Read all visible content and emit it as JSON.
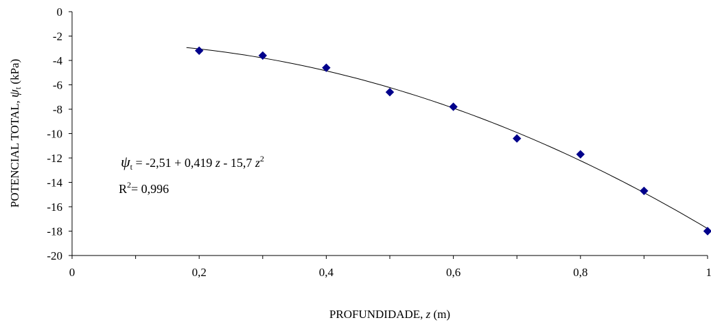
{
  "chart_data": {
    "type": "scatter",
    "xlabel_prefix": "PROFUNDIDADE, ",
    "xlabel_var": "z",
    "xlabel_unit": " (m)",
    "ylabel_prefix": "POTENCIAL TOTAL, ",
    "ylabel_var": "ψ",
    "ylabel_sub": "t",
    "ylabel_unit": " (kPa)",
    "xlim": [
      0,
      1
    ],
    "ylim": [
      -20,
      0
    ],
    "x_ticks": [
      0,
      0.1,
      0.2,
      0.3,
      0.4,
      0.5,
      0.6,
      0.7,
      0.8,
      0.9,
      1
    ],
    "x_tick_labels": [
      "0",
      "0,2",
      "0,4",
      "0,6",
      "0,8",
      "1"
    ],
    "x_tick_label_values": [
      0,
      0.2,
      0.4,
      0.6,
      0.8,
      1
    ],
    "y_ticks": [
      0,
      -2,
      -4,
      -6,
      -8,
      -10,
      -12,
      -14,
      -16,
      -18,
      -20
    ],
    "y_tick_labels": [
      "0",
      "-2",
      "-4",
      "-6",
      "-8",
      "-10",
      "-12",
      "-14",
      "-16",
      "-18",
      "-20"
    ],
    "grid": false,
    "legend": "none",
    "marker_color": "#00008B",
    "line_color": "#000000",
    "points": [
      {
        "x": 0.2,
        "y": -3.2
      },
      {
        "x": 0.3,
        "y": -3.6
      },
      {
        "x": 0.4,
        "y": -4.6
      },
      {
        "x": 0.5,
        "y": -6.6
      },
      {
        "x": 0.6,
        "y": -7.8
      },
      {
        "x": 0.7,
        "y": -10.4
      },
      {
        "x": 0.8,
        "y": -11.7
      },
      {
        "x": 0.9,
        "y": -14.7
      },
      {
        "x": 1.0,
        "y": -18.0
      }
    ],
    "trendline": {
      "type": "polynomial",
      "coefficients": [
        -2.51,
        0.419,
        -15.7
      ],
      "x_range": [
        0.18,
        1.0
      ]
    },
    "annotation": {
      "eq_var": "ψ",
      "eq_sub": "t",
      "eq_body": " = -2,51 + 0,419 ",
      "eq_z1": "z",
      "eq_mid": " - 15,7 ",
      "eq_z2": "z",
      "eq_exp": "2",
      "r2_base": "R",
      "r2_exp": "2",
      "r2_value": "= 0,996"
    }
  }
}
